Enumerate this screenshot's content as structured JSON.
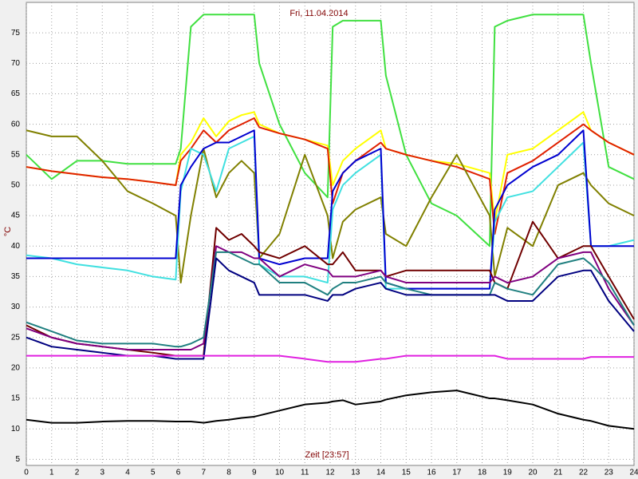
{
  "chart_data": {
    "type": "line",
    "title": "Fri, 11.04.2014",
    "x_label": "Zeit [23:57]",
    "y_label": "°C",
    "x": [
      0,
      1,
      2,
      3,
      4,
      5,
      5.9,
      6.1,
      6.5,
      7,
      7.5,
      8,
      8.5,
      9,
      9.2,
      10,
      11,
      11.9,
      12.1,
      12.5,
      13,
      14,
      14.2,
      15,
      16,
      17,
      18.3,
      18.5,
      19,
      20,
      21,
      22,
      22.3,
      23,
      24
    ],
    "xlim": [
      0,
      24
    ],
    "xticks": [
      0,
      1,
      2,
      3,
      4,
      5,
      6,
      7,
      8,
      9,
      10,
      11,
      12,
      13,
      14,
      15,
      16,
      17,
      18,
      19,
      20,
      21,
      22,
      23,
      24
    ],
    "ylim": [
      4,
      80
    ],
    "yticks": [
      5,
      10,
      15,
      20,
      25,
      30,
      35,
      40,
      45,
      50,
      55,
      60,
      65,
      70,
      75
    ],
    "grid": true,
    "series": [
      {
        "color": "#40e040",
        "values": [
          55,
          51,
          54,
          54,
          53.5,
          53.5,
          53.5,
          56,
          76,
          78,
          78,
          78,
          78,
          78,
          70,
          60,
          52,
          48,
          76,
          77,
          77,
          77,
          68,
          55,
          47,
          45,
          40,
          76,
          77,
          78,
          78,
          78,
          70,
          53,
          51
        ]
      },
      {
        "color": "#ffff00",
        "values": [
          53,
          52.3,
          51.8,
          51.3,
          51,
          50.5,
          50,
          55,
          57,
          61,
          58,
          60.5,
          61.5,
          62,
          60,
          58.5,
          57.5,
          56.5,
          50,
          54,
          56,
          59,
          56,
          55,
          54,
          53.5,
          52,
          44,
          55,
          56,
          59,
          62,
          59,
          57,
          55
        ]
      },
      {
        "color": "#e02000",
        "values": [
          53,
          52.3,
          51.8,
          51.3,
          51,
          50.5,
          50,
          54,
          56,
          59,
          57,
          59,
          60,
          61,
          59.5,
          58.5,
          57.5,
          56,
          47,
          52,
          54,
          57,
          56,
          55,
          54,
          53,
          51,
          42,
          52,
          54,
          57,
          60,
          59,
          57,
          55
        ]
      },
      {
        "color": "#808000",
        "values": [
          59,
          58,
          58,
          54,
          49,
          47,
          45,
          34,
          45,
          56,
          48,
          52,
          54,
          52,
          38,
          42,
          55,
          45,
          38,
          44,
          46,
          48,
          42,
          40,
          48,
          55,
          45,
          35,
          43,
          40,
          50,
          52,
          50,
          47,
          45
        ]
      },
      {
        "color": "#40e0e0",
        "values": [
          38.5,
          38,
          37,
          36.5,
          36,
          35,
          34.5,
          49,
          56,
          55,
          49,
          56,
          57,
          58,
          37,
          35,
          35,
          34,
          46,
          50,
          52,
          55,
          33,
          33,
          33,
          33,
          33,
          44,
          48,
          49,
          53,
          57,
          40,
          40,
          41
        ]
      },
      {
        "color": "#0000d0",
        "values": [
          38,
          38,
          38,
          38,
          38,
          38,
          38,
          50,
          53,
          56,
          57,
          57,
          58,
          59,
          38,
          37,
          38,
          38,
          49,
          52,
          54,
          56,
          34,
          33,
          33,
          33,
          33,
          46,
          50,
          53,
          55,
          59,
          40,
          40,
          40
        ]
      },
      {
        "color": "#700000",
        "values": [
          27,
          25,
          24,
          23.5,
          23,
          22.5,
          22,
          22,
          22,
          22,
          43,
          41,
          42,
          40,
          39,
          38,
          40,
          37,
          37,
          39,
          36,
          36,
          35,
          36,
          36,
          36,
          36,
          34,
          33,
          44,
          38,
          40,
          40,
          35,
          28
        ]
      },
      {
        "color": "#800080",
        "values": [
          26.5,
          25,
          24,
          23.5,
          23,
          23,
          23,
          23,
          23,
          24,
          40,
          39,
          39,
          38,
          38,
          35,
          37,
          36,
          35,
          35,
          35,
          36,
          35,
          34,
          34,
          34,
          34,
          35,
          34,
          35,
          38,
          39,
          39,
          33,
          27
        ]
      },
      {
        "color": "#208080",
        "values": [
          27.5,
          26,
          24.5,
          24,
          24,
          24,
          23.5,
          23.5,
          24,
          25,
          39,
          39,
          38,
          37,
          37,
          34,
          34,
          32,
          33,
          34,
          34,
          35,
          34,
          33,
          32,
          32,
          32,
          34,
          33,
          32,
          37,
          38,
          37,
          34,
          27
        ]
      },
      {
        "color": "#000080",
        "values": [
          25,
          23.5,
          23,
          22.5,
          22,
          22,
          21.5,
          21.5,
          21.5,
          21.5,
          38,
          36,
          35,
          34,
          32,
          32,
          32,
          31,
          32,
          32,
          33,
          34,
          33,
          32,
          32,
          32,
          32,
          32,
          31,
          31,
          35,
          36,
          36,
          31,
          26
        ]
      },
      {
        "color": "#e020e0",
        "values": [
          22,
          22,
          22,
          22,
          22,
          22,
          22,
          22,
          22,
          22,
          22,
          22,
          22,
          22,
          22,
          22,
          21.5,
          21,
          21,
          21,
          21,
          21.5,
          21.5,
          22,
          22,
          22,
          22,
          22,
          21.5,
          21.5,
          21.5,
          21.5,
          21.8,
          21.8,
          21.8
        ]
      },
      {
        "color": "#000000",
        "values": [
          11.5,
          11,
          11,
          11.2,
          11.3,
          11.3,
          11.2,
          11.2,
          11.2,
          11,
          11.3,
          11.5,
          11.8,
          12,
          12.2,
          13,
          14,
          14.3,
          14.5,
          14.7,
          14,
          14.5,
          14.8,
          15.5,
          16,
          16.3,
          15,
          15,
          14.7,
          14,
          12.5,
          11.5,
          11.3,
          10.5,
          10
        ]
      }
    ]
  }
}
